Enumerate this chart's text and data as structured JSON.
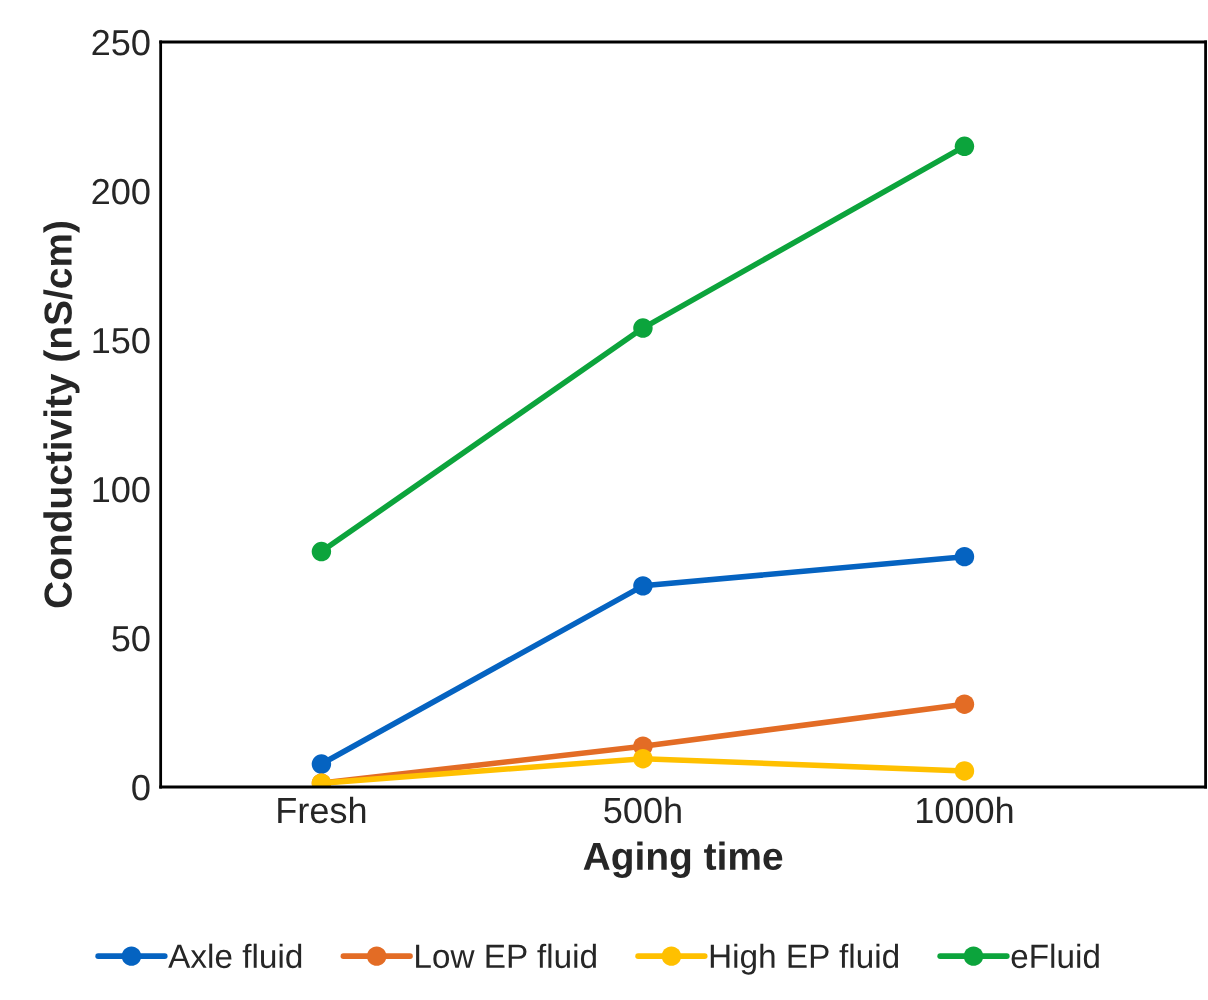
{
  "chart_data": {
    "type": "line",
    "xlabel": "Aging time",
    "ylabel": "Conductivity (nS/cm)",
    "categories": [
      "Fresh",
      "500h",
      "1000h"
    ],
    "series": [
      {
        "name": "Axle fluid",
        "color": "#0563c1",
        "values": [
          7.7,
          67.5,
          77.3
        ]
      },
      {
        "name": "Low EP fluid",
        "color": "#e36c25",
        "values": [
          1.3,
          13.7,
          27.8
        ]
      },
      {
        "name": "High EP fluid",
        "color": "#ffc000",
        "values": [
          1.3,
          9.5,
          5.4
        ]
      },
      {
        "name": "eFluid",
        "color": "#0ca43c",
        "values": [
          79,
          154,
          215
        ]
      }
    ],
    "ylim": [
      0,
      250
    ],
    "yticks": [
      0,
      50,
      100,
      150,
      200,
      250
    ],
    "grid": false,
    "legend": "bottom",
    "marker": "circle",
    "line_style": "solid"
  }
}
